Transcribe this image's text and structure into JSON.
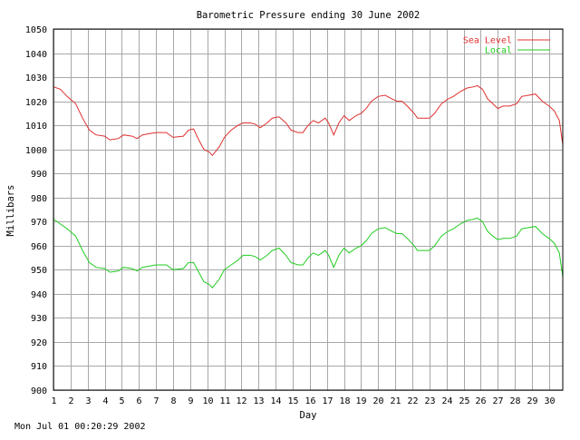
{
  "chart_data": {
    "type": "line",
    "title": "Barometric Pressure ending 30 June 2002",
    "xlabel": "Day",
    "ylabel": "Millibars",
    "ylim": [
      900,
      1050
    ],
    "yticks": [
      900,
      910,
      920,
      930,
      940,
      950,
      960,
      970,
      980,
      990,
      1000,
      1010,
      1020,
      1030,
      1040,
      1050
    ],
    "xlim": [
      1,
      30.8
    ],
    "xticks": [
      1,
      2,
      3,
      4,
      5,
      6,
      7,
      8,
      9,
      10,
      11,
      12,
      13,
      14,
      15,
      16,
      17,
      18,
      19,
      20,
      21,
      22,
      23,
      24,
      25,
      26,
      27,
      28,
      29,
      30
    ],
    "grid": true,
    "legend": "top-right",
    "series": [
      {
        "name": "Sea Level",
        "color": "#e03030",
        "points": [
          [
            1.0,
            1026
          ],
          [
            1.4,
            1025
          ],
          [
            1.8,
            1022
          ],
          [
            2.3,
            1019
          ],
          [
            2.7,
            1013
          ],
          [
            3.1,
            1008
          ],
          [
            3.5,
            1006
          ],
          [
            4.0,
            1005.5
          ],
          [
            4.3,
            1004
          ],
          [
            4.8,
            1004.5
          ],
          [
            5.1,
            1006
          ],
          [
            5.6,
            1005.5
          ],
          [
            5.9,
            1004.5
          ],
          [
            6.2,
            1006
          ],
          [
            6.6,
            1006.5
          ],
          [
            7.0,
            1007
          ],
          [
            7.6,
            1007
          ],
          [
            8.0,
            1005
          ],
          [
            8.6,
            1005.5
          ],
          [
            8.9,
            1008
          ],
          [
            9.2,
            1008.5
          ],
          [
            9.5,
            1004
          ],
          [
            9.8,
            1000
          ],
          [
            10.1,
            999
          ],
          [
            10.3,
            997.5
          ],
          [
            10.7,
            1001
          ],
          [
            11.0,
            1005
          ],
          [
            11.4,
            1008
          ],
          [
            11.8,
            1010
          ],
          [
            12.1,
            1011
          ],
          [
            12.5,
            1011
          ],
          [
            12.8,
            1010.5
          ],
          [
            13.1,
            1009
          ],
          [
            13.5,
            1011
          ],
          [
            13.8,
            1013
          ],
          [
            14.2,
            1013.5
          ],
          [
            14.6,
            1011
          ],
          [
            14.9,
            1008
          ],
          [
            15.3,
            1007
          ],
          [
            15.6,
            1007
          ],
          [
            15.9,
            1010
          ],
          [
            16.2,
            1012
          ],
          [
            16.5,
            1011
          ],
          [
            16.9,
            1013
          ],
          [
            17.1,
            1011
          ],
          [
            17.4,
            1006
          ],
          [
            17.7,
            1011
          ],
          [
            18.0,
            1014
          ],
          [
            18.3,
            1012
          ],
          [
            18.7,
            1014
          ],
          [
            19.0,
            1015
          ],
          [
            19.3,
            1017
          ],
          [
            19.6,
            1020
          ],
          [
            20.0,
            1022
          ],
          [
            20.4,
            1022.5
          ],
          [
            20.8,
            1021
          ],
          [
            21.1,
            1020
          ],
          [
            21.4,
            1020
          ],
          [
            21.7,
            1018
          ],
          [
            22.1,
            1015
          ],
          [
            22.3,
            1013
          ],
          [
            22.7,
            1013
          ],
          [
            23.0,
            1013
          ],
          [
            23.3,
            1015
          ],
          [
            23.7,
            1019
          ],
          [
            24.1,
            1021
          ],
          [
            24.4,
            1022
          ],
          [
            24.8,
            1024
          ],
          [
            25.2,
            1025.5
          ],
          [
            25.6,
            1026
          ],
          [
            25.8,
            1026.5
          ],
          [
            26.1,
            1025
          ],
          [
            26.4,
            1021
          ],
          [
            26.7,
            1019
          ],
          [
            27.0,
            1017
          ],
          [
            27.3,
            1018
          ],
          [
            27.7,
            1018
          ],
          [
            28.1,
            1019
          ],
          [
            28.4,
            1022
          ],
          [
            28.8,
            1022.5
          ],
          [
            29.2,
            1023
          ],
          [
            29.6,
            1020
          ],
          [
            30.0,
            1018
          ],
          [
            30.3,
            1016
          ],
          [
            30.6,
            1012
          ],
          [
            30.8,
            1002
          ]
        ]
      },
      {
        "name": "Local",
        "color": "#22cc22",
        "points": [
          [
            1.0,
            971
          ],
          [
            1.4,
            969
          ],
          [
            1.8,
            967
          ],
          [
            2.3,
            964
          ],
          [
            2.7,
            958
          ],
          [
            3.1,
            953
          ],
          [
            3.5,
            951
          ],
          [
            4.0,
            950.5
          ],
          [
            4.3,
            949
          ],
          [
            4.8,
            949.5
          ],
          [
            5.1,
            951
          ],
          [
            5.6,
            950.5
          ],
          [
            5.9,
            949.5
          ],
          [
            6.2,
            951
          ],
          [
            6.6,
            951.5
          ],
          [
            7.0,
            952
          ],
          [
            7.6,
            952
          ],
          [
            8.0,
            950
          ],
          [
            8.6,
            950.5
          ],
          [
            8.9,
            953
          ],
          [
            9.2,
            953
          ],
          [
            9.5,
            949
          ],
          [
            9.8,
            945
          ],
          [
            10.1,
            944
          ],
          [
            10.3,
            942.5
          ],
          [
            10.7,
            946
          ],
          [
            11.0,
            950
          ],
          [
            11.4,
            952
          ],
          [
            11.8,
            954
          ],
          [
            12.1,
            956
          ],
          [
            12.5,
            956
          ],
          [
            12.8,
            955.5
          ],
          [
            13.1,
            954
          ],
          [
            13.5,
            956
          ],
          [
            13.8,
            958
          ],
          [
            14.2,
            959
          ],
          [
            14.6,
            956
          ],
          [
            14.9,
            953
          ],
          [
            15.3,
            952
          ],
          [
            15.6,
            952
          ],
          [
            15.9,
            955
          ],
          [
            16.2,
            957
          ],
          [
            16.5,
            956
          ],
          [
            16.9,
            958
          ],
          [
            17.1,
            956
          ],
          [
            17.4,
            951
          ],
          [
            17.7,
            956
          ],
          [
            18.0,
            959
          ],
          [
            18.3,
            957
          ],
          [
            18.7,
            959
          ],
          [
            19.0,
            960
          ],
          [
            19.3,
            962
          ],
          [
            19.6,
            965
          ],
          [
            20.0,
            967
          ],
          [
            20.4,
            967.5
          ],
          [
            20.8,
            966
          ],
          [
            21.1,
            965
          ],
          [
            21.4,
            965
          ],
          [
            21.7,
            963
          ],
          [
            22.1,
            960
          ],
          [
            22.3,
            958
          ],
          [
            22.7,
            958
          ],
          [
            23.0,
            958
          ],
          [
            23.3,
            960
          ],
          [
            23.7,
            964
          ],
          [
            24.1,
            966
          ],
          [
            24.4,
            967
          ],
          [
            24.8,
            969
          ],
          [
            25.2,
            970.5
          ],
          [
            25.6,
            971
          ],
          [
            25.8,
            971.5
          ],
          [
            26.1,
            970
          ],
          [
            26.4,
            966
          ],
          [
            26.7,
            964
          ],
          [
            27.0,
            962.5
          ],
          [
            27.3,
            963
          ],
          [
            27.7,
            963
          ],
          [
            28.1,
            964
          ],
          [
            28.4,
            967
          ],
          [
            28.8,
            967.5
          ],
          [
            29.2,
            968
          ],
          [
            29.6,
            965
          ],
          [
            30.0,
            963
          ],
          [
            30.3,
            961
          ],
          [
            30.6,
            957
          ],
          [
            30.8,
            947
          ]
        ]
      }
    ]
  },
  "footer": {
    "timestamp": "Mon Jul 01 00:20:29 2002"
  }
}
